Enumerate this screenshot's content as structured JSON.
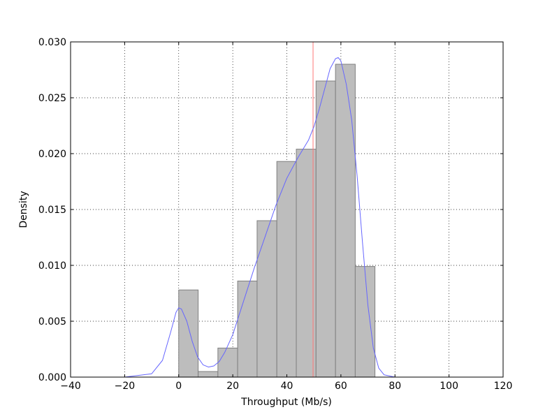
{
  "chart_data": {
    "type": "bar",
    "subtype": "histogram-with-density",
    "title": "",
    "xlabel": "Throughput (Mb/s)",
    "ylabel": "Density",
    "xlim": [
      -40,
      120
    ],
    "ylim": [
      0,
      0.03
    ],
    "x_ticks": [
      -40,
      -20,
      0,
      20,
      40,
      60,
      80,
      100,
      120
    ],
    "x_tick_labels": [
      "−40",
      "−20",
      "0",
      "20",
      "40",
      "60",
      "80",
      "100",
      "120"
    ],
    "y_ticks": [
      0,
      0.005,
      0.01,
      0.015,
      0.02,
      0.025,
      0.03
    ],
    "y_tick_labels": [
      "0.000",
      "0.005",
      "0.010",
      "0.015",
      "0.020",
      "0.025",
      "0.030"
    ],
    "grid": true,
    "grid_style": "dotted",
    "bins": [
      {
        "x0": 0.0,
        "x1": 7.2,
        "density": 0.0078
      },
      {
        "x0": 7.2,
        "x1": 14.5,
        "density": 0.0005
      },
      {
        "x0": 14.5,
        "x1": 21.8,
        "density": 0.0026
      },
      {
        "x0": 21.8,
        "x1": 29.0,
        "density": 0.0086
      },
      {
        "x0": 29.0,
        "x1": 36.3,
        "density": 0.014
      },
      {
        "x0": 36.3,
        "x1": 43.5,
        "density": 0.0193
      },
      {
        "x0": 43.5,
        "x1": 50.8,
        "density": 0.0204
      },
      {
        "x0": 50.8,
        "x1": 58.0,
        "density": 0.0265
      },
      {
        "x0": 58.0,
        "x1": 65.3,
        "density": 0.028
      },
      {
        "x0": 65.3,
        "x1": 72.6,
        "density": 0.0099
      }
    ],
    "density_curve": {
      "x": [
        -36,
        -20,
        -10,
        -6,
        -3,
        -1,
        0,
        1,
        3,
        5,
        7,
        9,
        11,
        13,
        15,
        17,
        20,
        24,
        28,
        32,
        36,
        40,
        44,
        48,
        50,
        52,
        54,
        56,
        58,
        59,
        60,
        62,
        64,
        66,
        68,
        70,
        72,
        74,
        76,
        80,
        90,
        100,
        109
      ],
      "y": [
        0,
        0,
        0.0003,
        0.0015,
        0.004,
        0.0058,
        0.0062,
        0.0061,
        0.005,
        0.0032,
        0.0018,
        0.0011,
        0.0009,
        0.001,
        0.0014,
        0.0022,
        0.0038,
        0.0068,
        0.0098,
        0.0126,
        0.0154,
        0.0178,
        0.0196,
        0.0212,
        0.0224,
        0.024,
        0.0258,
        0.0276,
        0.0285,
        0.0286,
        0.0283,
        0.0262,
        0.023,
        0.018,
        0.012,
        0.0064,
        0.0026,
        0.0008,
        0.0002,
        0,
        0,
        0,
        0
      ]
    },
    "reference_line_x": 49.7,
    "colors": {
      "bar_fill": "#bdbdbd",
      "bar_stroke": "#7f7f7f",
      "density_line": "#6666ff",
      "reference_line": "#ff7777",
      "grid": "#000000"
    }
  }
}
